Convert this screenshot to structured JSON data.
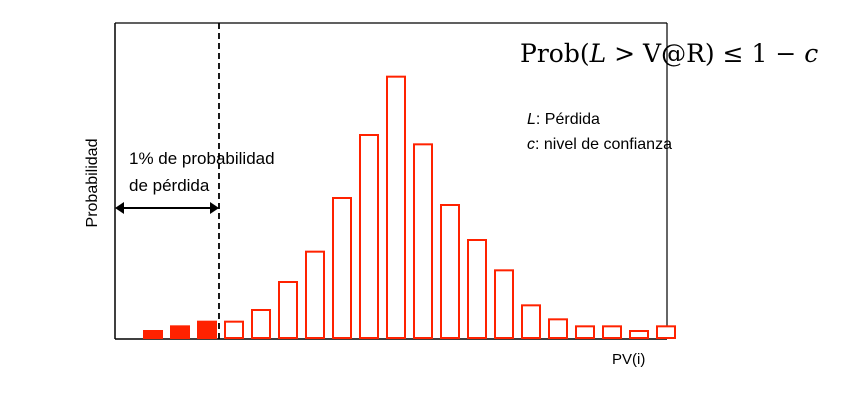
{
  "chart_data": {
    "type": "bar",
    "xlabel": "PV(i)",
    "ylabel": "Probabilidad",
    "formula": {
      "prefix": "Prob(",
      "var": "L",
      "middle": " > V@R) ≤ 1 − ",
      "suffix_var": "c"
    },
    "legend": [
      {
        "symbol": "L",
        "text": ": Pérdida"
      },
      {
        "symbol": "c",
        "text": ": nivel de confianza"
      }
    ],
    "annotation": {
      "line1": "1% de probabilidad",
      "line2": "de pérdida"
    },
    "tail_count": 3,
    "values": [
      1.5,
      2.5,
      3.5,
      3.5,
      6,
      12,
      18.5,
      30,
      43.5,
      56,
      41.5,
      28.5,
      21,
      14.5,
      7,
      4,
      2.5,
      2.5,
      1.5,
      2.5
    ],
    "ylim": [
      0,
      60
    ],
    "colors": {
      "bar": "#ff2200",
      "axis": "#000000",
      "var_line": "#000000"
    }
  }
}
